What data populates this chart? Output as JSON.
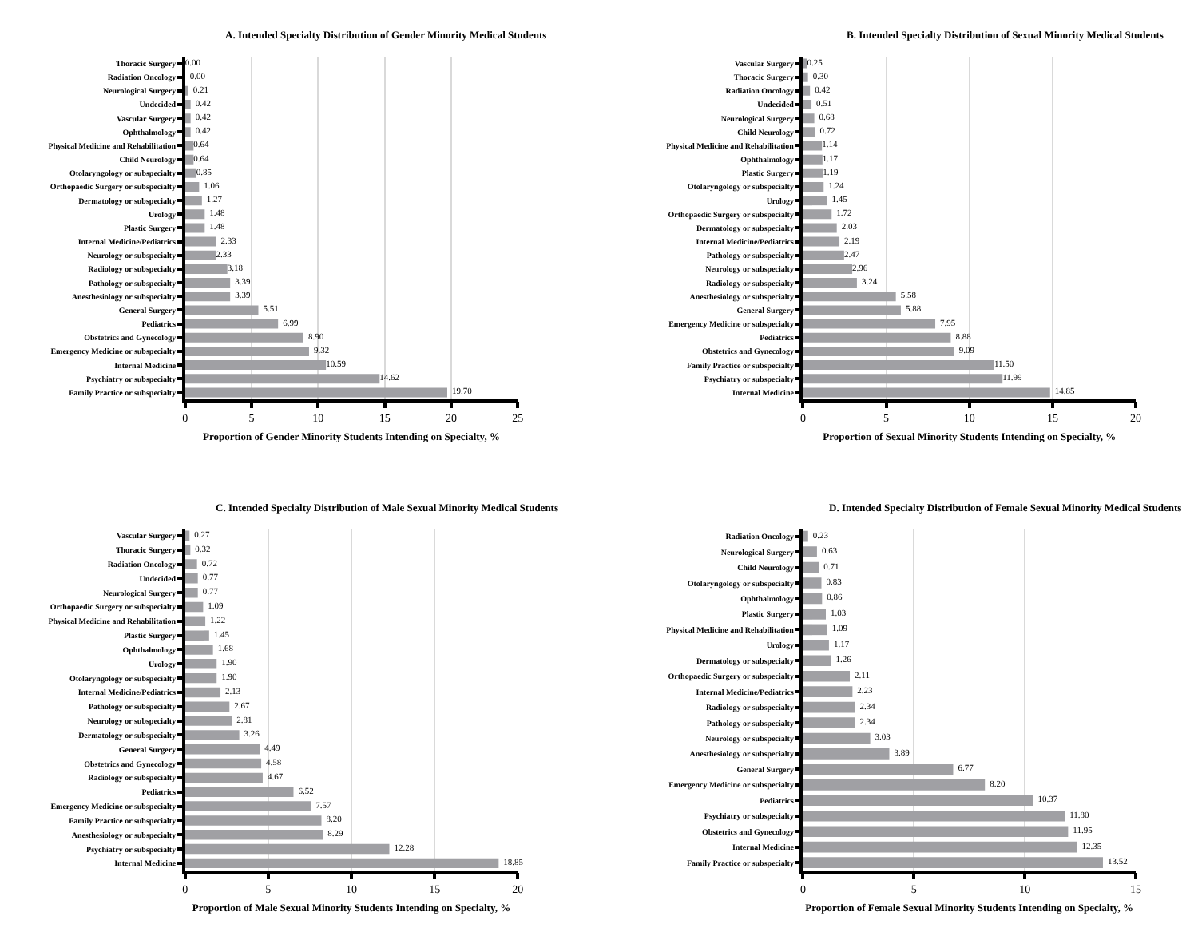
{
  "chart_data": [
    {
      "type": "bar",
      "orientation": "horizontal",
      "title": "A. Intended Specialty Distribution of Gender Minority Medical Students",
      "xlabel": "Proportion of Gender Minority Students Intending on Specialty, %",
      "color": "#a0a0a4",
      "grid": "x",
      "xlim": [
        0,
        25
      ],
      "xticks": [
        0,
        5,
        10,
        15,
        20,
        25
      ],
      "categories": [
        "Thoracic Surgery",
        "Radiation Oncology",
        "Neurological Surgery",
        "Undecided",
        "Vascular Surgery",
        "Ophthalmology",
        "Physical Medicine and Rehabilitation",
        "Child Neurology",
        "Otolaryngology or subspecialty",
        "Orthopaedic Surgery or subspecialty",
        "Dermatology or subspecialty",
        "Urology",
        "Plastic Surgery",
        "Internal Medicine/Pediatrics",
        "Neurology or subspecialty",
        "Radiology or subspecialty",
        "Pathology or subspecialty",
        "Anesthesiology or subspecialty",
        "General Surgery",
        "Pediatrics",
        "Obstetrics and Gynecology",
        "Emergency Medicine or subspecialty",
        "Internal Medicine",
        "Psychiatry or subspecialty",
        "Family Practice or subspecialty"
      ],
      "values": [
        0.0,
        0.0,
        0.21,
        0.42,
        0.42,
        0.42,
        0.64,
        0.64,
        0.85,
        1.06,
        1.27,
        1.48,
        1.48,
        2.33,
        2.33,
        3.18,
        3.39,
        3.39,
        5.51,
        6.99,
        8.9,
        9.32,
        10.59,
        14.62,
        19.7
      ],
      "value_labels": [
        "0.00",
        "0.00",
        "0.21",
        "0.42",
        "0.42",
        "0.42",
        "0.64",
        "0.64",
        "0.85",
        "1.06",
        "1.27",
        "1.48",
        "1.48",
        "2.33",
        "2.33",
        "3.18",
        "3.39",
        "3.39",
        "5.51",
        "6.99",
        "8.90",
        "9.32",
        "10.59",
        "14.62",
        "19.70"
      ]
    },
    {
      "type": "bar",
      "orientation": "horizontal",
      "title": "B. Intended Specialty Distribution of Sexual Minority Medical Students",
      "xlabel": "Proportion of Sexual Minority Students Intending on Specialty, %",
      "color": "#a0a0a4",
      "grid": "x",
      "xlim": [
        0,
        20
      ],
      "xticks": [
        0,
        5,
        10,
        15,
        20
      ],
      "categories": [
        "Vascular Surgery",
        "Thoracic Surgery",
        "Radiation Oncology",
        "Undecided",
        "Neurological Surgery",
        "Child Neurology",
        "Physical Medicine and Rehabilitation",
        "Ophthalmology",
        "Plastic Surgery",
        "Otolaryngology or subspecialty",
        "Urology",
        "Orthopaedic Surgery or subspecialty",
        "Dermatology or subspecialty",
        "Internal Medicine/Pediatrics",
        "Pathology or subspecialty",
        "Neurology or subspecialty",
        "Radiology or subspecialty",
        "Anesthesiology or subspecialty",
        "General Surgery",
        "Emergency Medicine or subspecialty",
        "Pediatrics",
        "Obstetrics and Gynecology",
        "Family Practice or subspecialty",
        "Psychiatry or subspecialty",
        "Internal Medicine"
      ],
      "values": [
        0.25,
        0.3,
        0.42,
        0.51,
        0.68,
        0.72,
        1.14,
        1.17,
        1.19,
        1.24,
        1.45,
        1.72,
        2.03,
        2.19,
        2.47,
        2.96,
        3.24,
        5.58,
        5.88,
        7.95,
        8.88,
        9.09,
        11.5,
        11.99,
        14.85
      ],
      "value_labels": [
        "0.25",
        "0.30",
        "0.42",
        "0.51",
        "0.68",
        "0.72",
        "1.14",
        "1.17",
        "1.19",
        "1.24",
        "1.45",
        "1.72",
        "2.03",
        "2.19",
        "2.47",
        "2.96",
        "3.24",
        "5.58",
        "5.88",
        "7.95",
        "8.88",
        "9.09",
        "11.50",
        "11.99",
        "14.85"
      ]
    },
    {
      "type": "bar",
      "orientation": "horizontal",
      "title": "C. Intended Specialty Distribution of Male Sexual Minority Medical Students",
      "xlabel": "Proportion of Male Sexual Minority Students Intending on Specialty, %",
      "color": "#a0a0a4",
      "grid": "x",
      "xlim": [
        0,
        20
      ],
      "xticks": [
        0,
        5,
        10,
        15,
        20
      ],
      "categories": [
        "Vascular Surgery",
        "Thoracic Surgery",
        "Radiation Oncology",
        "Undecided",
        "Neurological Surgery",
        "Orthopaedic Surgery or subspecialty",
        "Physical Medicine and Rehabilitation",
        "Plastic Surgery",
        "Ophthalmology",
        "Urology",
        "Otolaryngology or subspecialty",
        "Internal Medicine/Pediatrics",
        "Pathology or subspecialty",
        "Neurology or subspecialty",
        "Dermatology or subspecialty",
        "General Surgery",
        "Obstetrics and Gynecology",
        "Radiology or subspecialty",
        "Pediatrics",
        "Emergency Medicine or subspecialty",
        "Family Practice or subspecialty",
        "Anesthesiology or subspecialty",
        "Psychiatry or subspecialty",
        "Internal Medicine"
      ],
      "values": [
        0.27,
        0.32,
        0.72,
        0.77,
        0.77,
        1.09,
        1.22,
        1.45,
        1.68,
        1.9,
        1.9,
        2.13,
        2.67,
        2.81,
        3.26,
        4.49,
        4.58,
        4.67,
        6.52,
        7.57,
        8.2,
        8.29,
        12.28,
        18.85
      ],
      "value_labels": [
        "0.27",
        "0.32",
        "0.72",
        "0.77",
        "0.77",
        "1.09",
        "1.22",
        "1.45",
        "1.68",
        "1.90",
        "1.90",
        "2.13",
        "2.67",
        "2.81",
        "3.26",
        "4.49",
        "4.58",
        "4.67",
        "6.52",
        "7.57",
        "8.20",
        "8.29",
        "12.28",
        "18.85"
      ]
    },
    {
      "type": "bar",
      "orientation": "horizontal",
      "title": "D. Intended Specialty Distribution of Female Sexual Minority Medical Students",
      "xlabel": "Proportion of Female Sexual Minority Students Intending on Specialty, %",
      "color": "#a0a0a4",
      "grid": "x",
      "xlim": [
        0,
        15
      ],
      "xticks": [
        0,
        5,
        10,
        15
      ],
      "categories": [
        "Radiation Oncology",
        "Neurological Surgery",
        "Child Neurology",
        "Otolaryngology or subspecialty",
        "Ophthalmology",
        "Plastic Surgery",
        "Physical Medicine and Rehabilitation",
        "Urology",
        "Dermatology or subspecialty",
        "Orthopaedic Surgery or subspecialty",
        "Internal Medicine/Pediatrics",
        "Radiology or subspecialty",
        "Pathology or subspecialty",
        "Neurology or subspecialty",
        "Anesthesiology or subspecialty",
        "General Surgery",
        "Emergency Medicine or subspecialty",
        "Pediatrics",
        "Psychiatry or subspecialty",
        "Obstetrics and Gynecology",
        "Internal Medicine",
        "Family Practice or subspecialty"
      ],
      "values": [
        0.23,
        0.63,
        0.71,
        0.83,
        0.86,
        1.03,
        1.09,
        1.17,
        1.26,
        2.11,
        2.23,
        2.34,
        2.34,
        3.03,
        3.89,
        6.77,
        8.2,
        10.37,
        11.8,
        11.95,
        12.35,
        13.52
      ],
      "value_labels": [
        "0.23",
        "0.63",
        "0.71",
        "0.83",
        "0.86",
        "1.03",
        "1.09",
        "1.17",
        "1.26",
        "2.11",
        "2.23",
        "2.34",
        "2.34",
        "3.03",
        "3.89",
        "6.77",
        "8.20",
        "10.37",
        "11.80",
        "11.95",
        "12.35",
        "13.52"
      ]
    }
  ]
}
